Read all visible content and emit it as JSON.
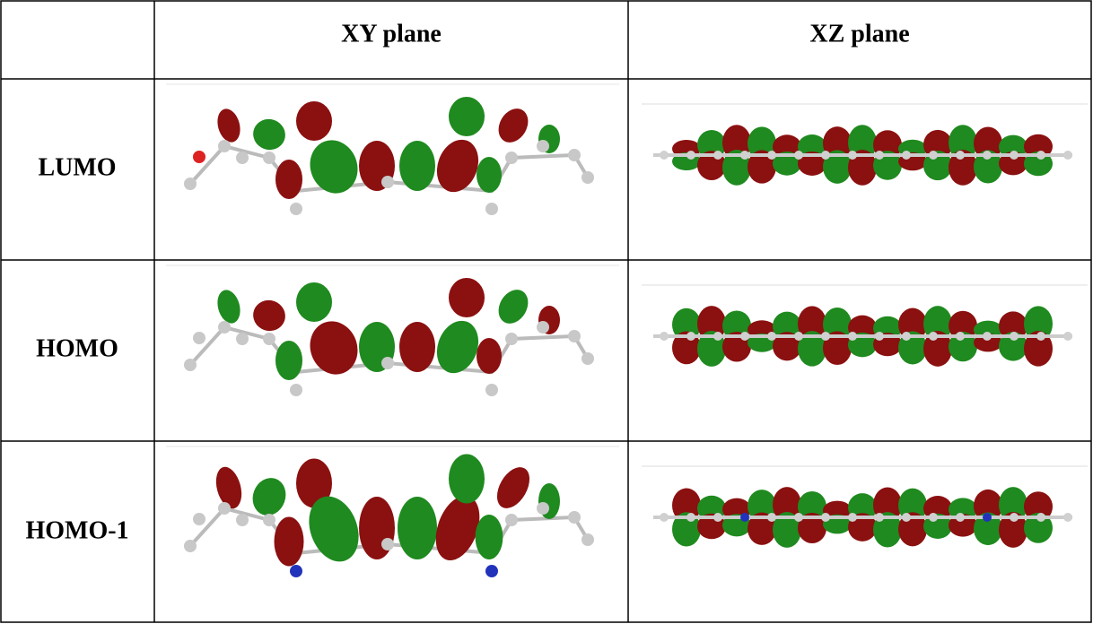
{
  "table": {
    "columns": [
      "XY plane",
      "XZ plane"
    ],
    "rows": [
      "LUMO",
      "HOMO",
      "HOMO-1"
    ]
  }
}
